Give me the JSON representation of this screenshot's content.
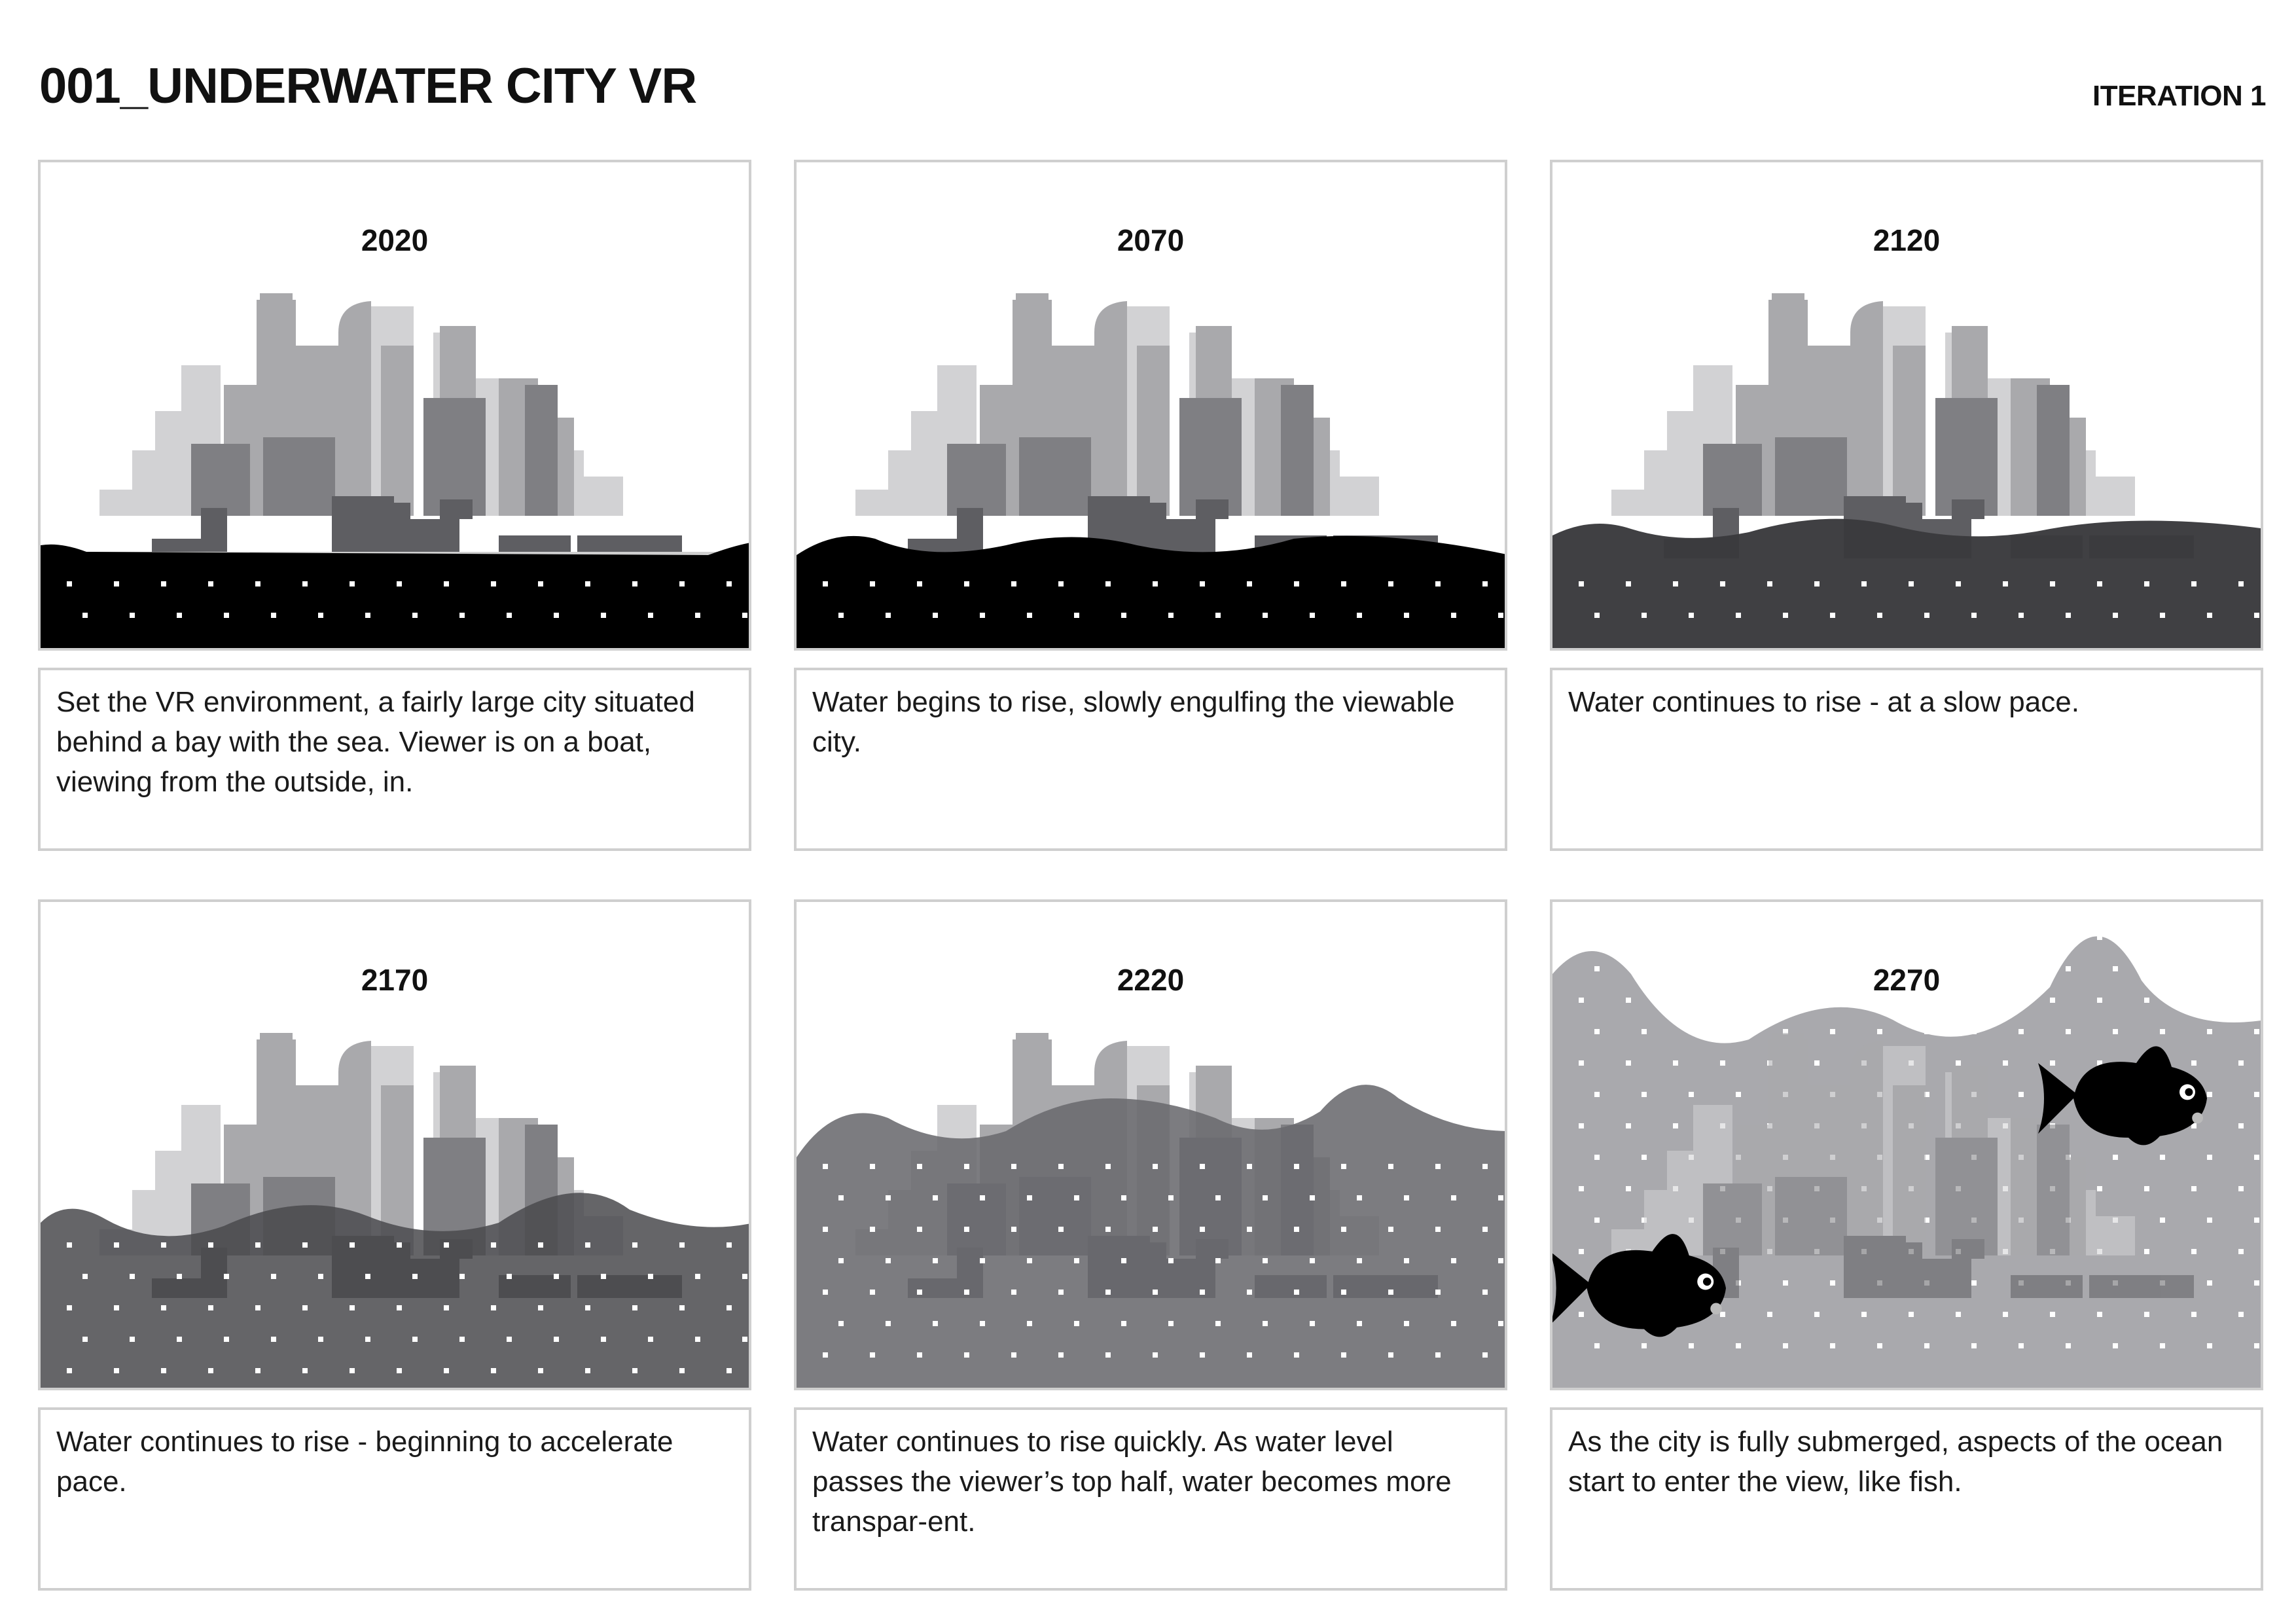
{
  "header": {
    "title": "001_UNDERWATER CITY VR",
    "iteration": "ITERATION 1"
  },
  "colors": {
    "building_light": "#d2d2d4",
    "building_mid": "#a9a9ac",
    "building_dark": "#7f7f83",
    "building_darker": "#5e5e62",
    "sea_black": "#000000"
  },
  "frames": [
    {
      "year": "2020",
      "caption": "Set the VR environment, a fairly large city situated behind a bay with the sea. Viewer is on a boat, viewing from the outside, in.",
      "water": "black-low",
      "fish": false
    },
    {
      "year": "2070",
      "caption": "Water begins to rise, slowly engulfing the viewable city.",
      "water": "black-wave",
      "fish": false
    },
    {
      "year": "2120",
      "caption": "Water continues to rise - at a slow pace.",
      "water": "dark-wave",
      "fish": false
    },
    {
      "year": "2170",
      "caption": "Water continues to rise - beginning to accelerate pace.",
      "water": "dark-gray-high",
      "fish": false
    },
    {
      "year": "2220",
      "caption": "Water continues to rise quickly. As water level passes the viewer’s top half, water becomes more transpar-ent.",
      "water": "gray-higher",
      "fish": false
    },
    {
      "year": "2270",
      "caption": "As the city is fully submerged, aspects of the ocean start to enter the view, like fish.",
      "water": "light-full",
      "fish": true
    }
  ]
}
